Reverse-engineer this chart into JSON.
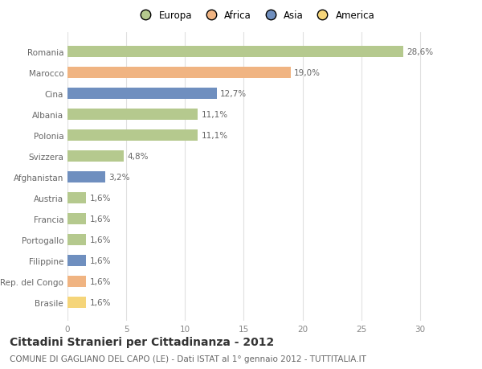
{
  "categories": [
    "Romania",
    "Marocco",
    "Cina",
    "Albania",
    "Polonia",
    "Svizzera",
    "Afghanistan",
    "Austria",
    "Francia",
    "Portogallo",
    "Filippine",
    "Rep. del Congo",
    "Brasile"
  ],
  "values": [
    28.6,
    19.0,
    12.7,
    11.1,
    11.1,
    4.8,
    3.2,
    1.6,
    1.6,
    1.6,
    1.6,
    1.6,
    1.6
  ],
  "labels": [
    "28,6%",
    "19,0%",
    "12,7%",
    "11,1%",
    "11,1%",
    "4,8%",
    "3,2%",
    "1,6%",
    "1,6%",
    "1,6%",
    "1,6%",
    "1,6%",
    "1,6%"
  ],
  "colors": [
    "#b5c98e",
    "#f0b482",
    "#6f8fbf",
    "#b5c98e",
    "#b5c98e",
    "#b5c98e",
    "#6f8fbf",
    "#b5c98e",
    "#b5c98e",
    "#b5c98e",
    "#6f8fbf",
    "#f0b482",
    "#f5d57a"
  ],
  "legend": [
    {
      "label": "Europa",
      "color": "#b5c98e"
    },
    {
      "label": "Africa",
      "color": "#f0b482"
    },
    {
      "label": "Asia",
      "color": "#6f8fbf"
    },
    {
      "label": "America",
      "color": "#f5d57a"
    }
  ],
  "xlim": [
    0,
    32
  ],
  "xticks": [
    0,
    5,
    10,
    15,
    20,
    25,
    30
  ],
  "title": "Cittadini Stranieri per Cittadinanza - 2012",
  "subtitle": "COMUNE DI GAGLIANO DEL CAPO (LE) - Dati ISTAT al 1° gennaio 2012 - TUTTITALIA.IT",
  "background_color": "#ffffff",
  "grid_color": "#e0e0e0",
  "bar_height": 0.55,
  "label_fontsize": 7.5,
  "tick_fontsize": 7.5,
  "title_fontsize": 10,
  "subtitle_fontsize": 7.5
}
